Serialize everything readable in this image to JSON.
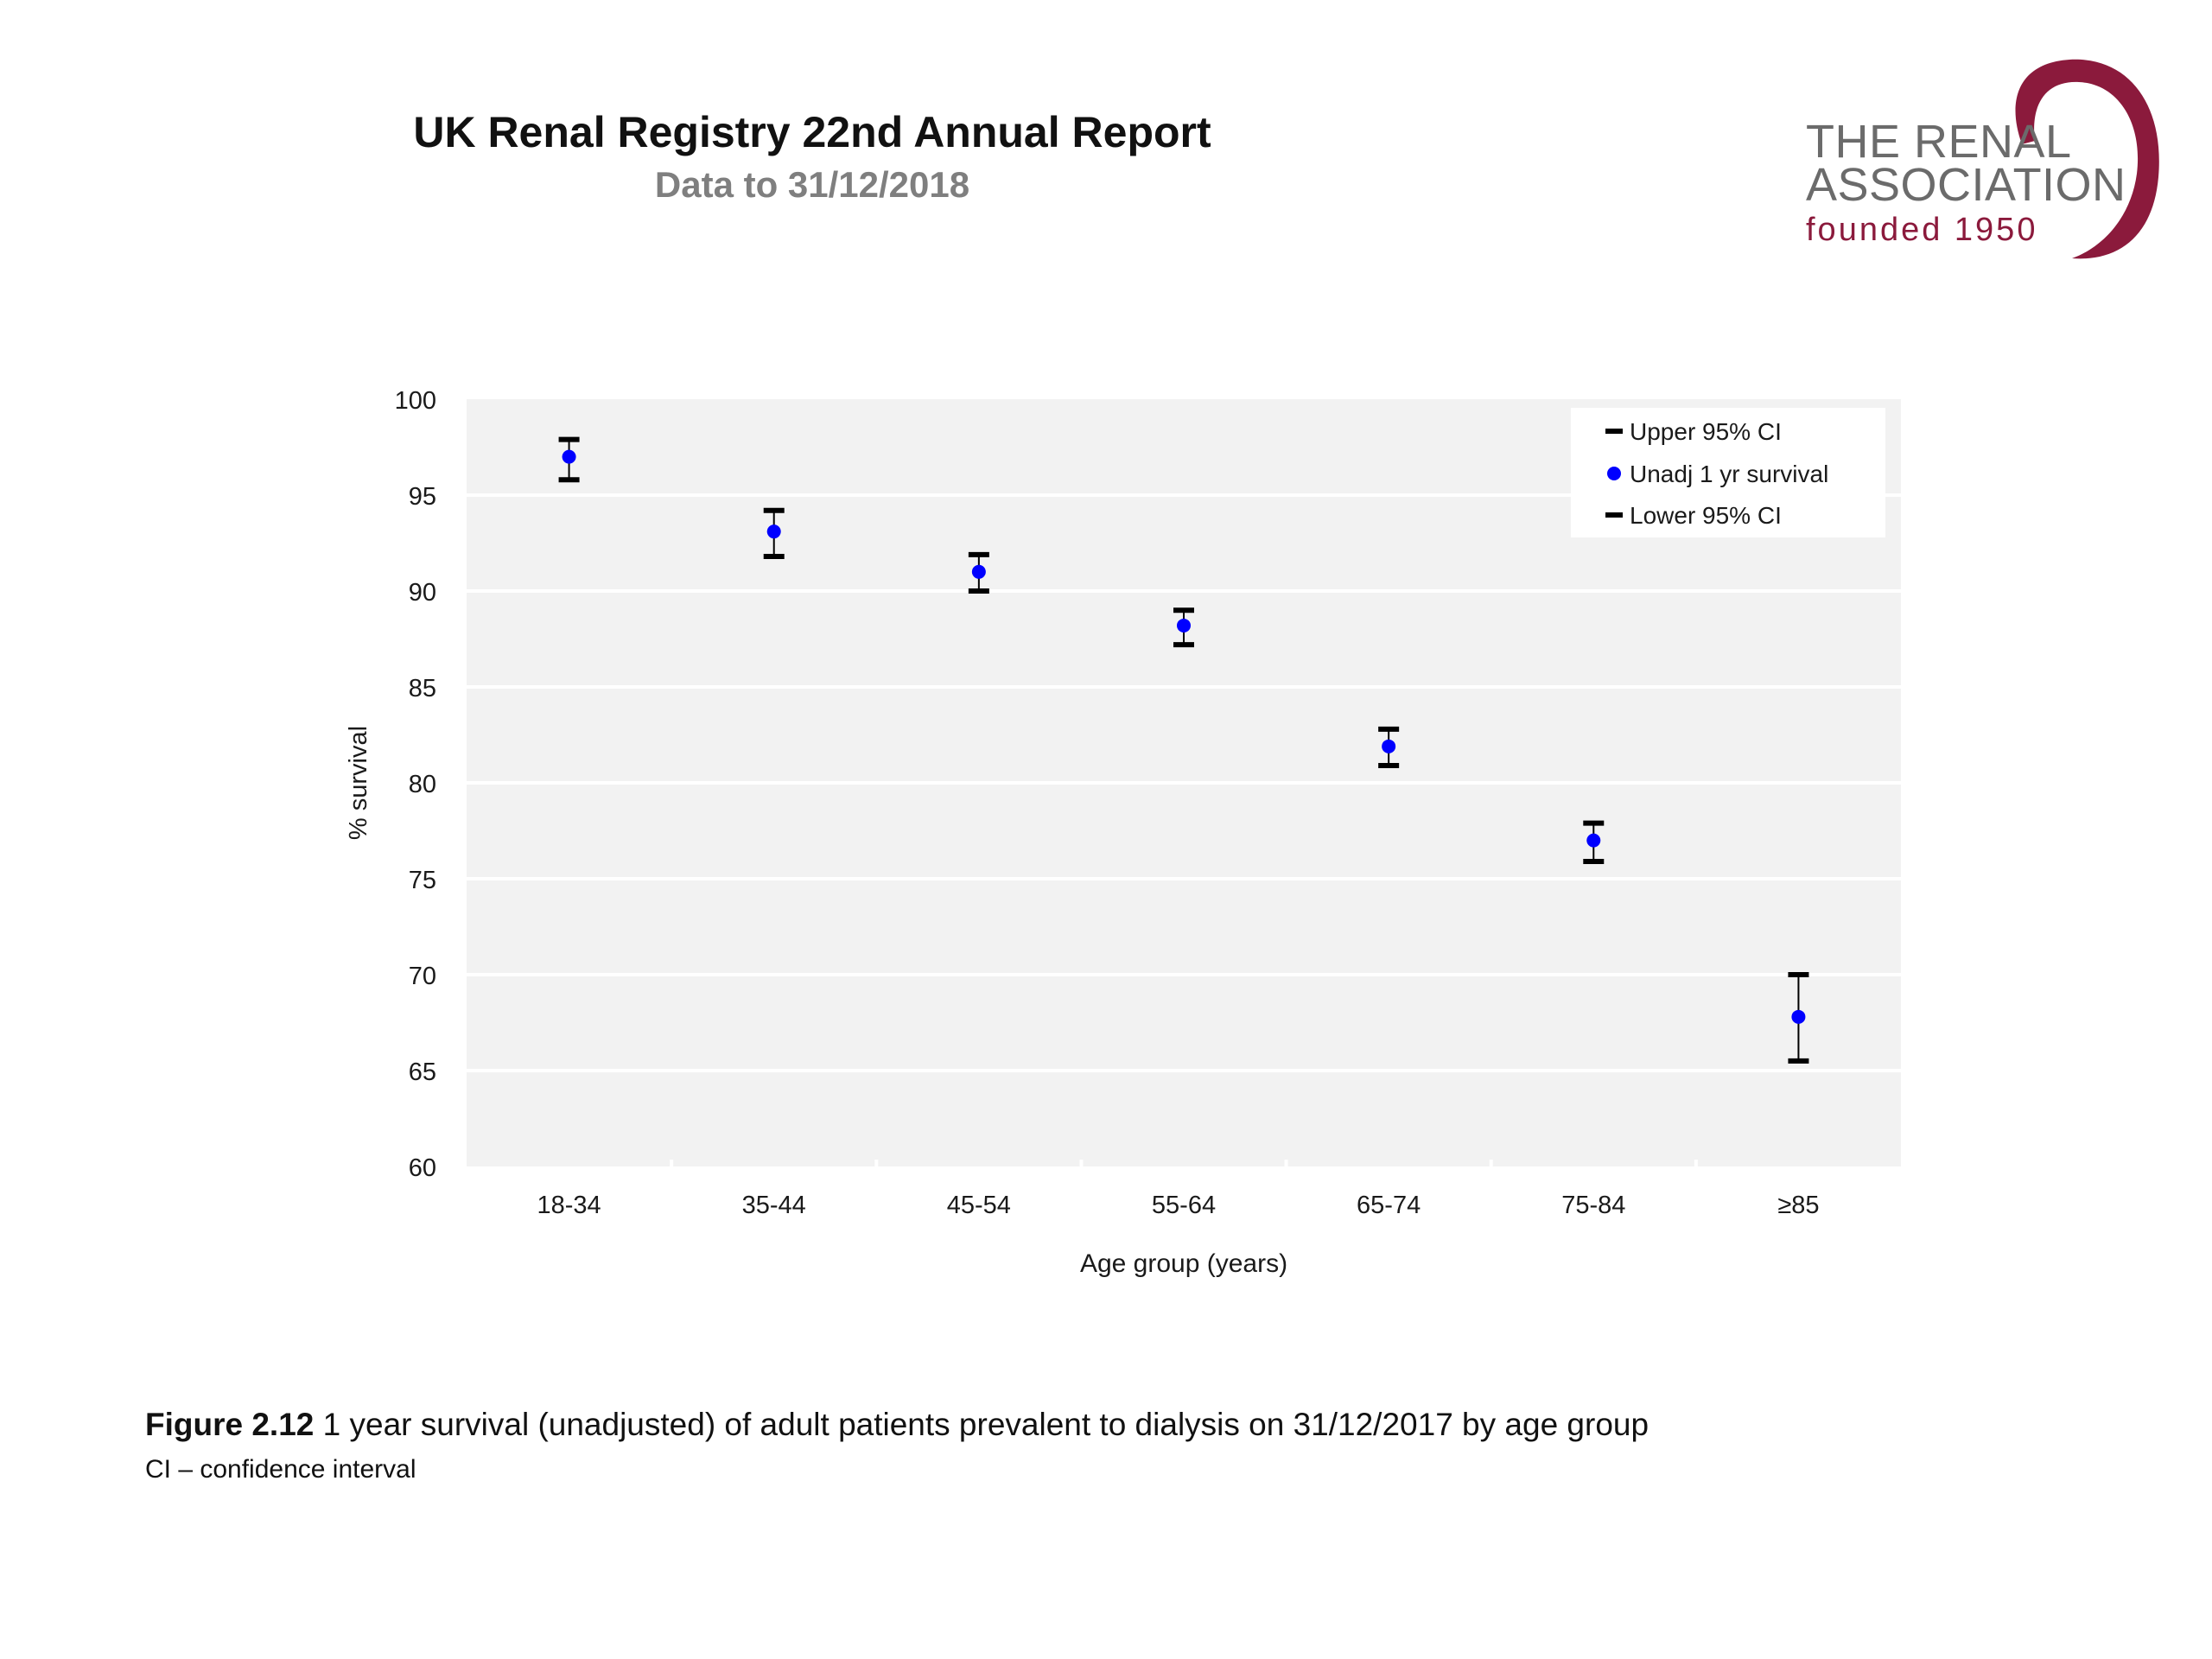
{
  "header": {
    "title": "UK Renal Registry 22nd Annual Report",
    "subtitle": "Data to 31/12/2018"
  },
  "logo": {
    "line1": "THE RENAL",
    "line2": "ASSOCIATION",
    "line3": "founded 1950"
  },
  "colors": {
    "plot_background": "#f2f2f2",
    "gridline": "#ffffff",
    "point": "#0000ff",
    "errorbar": "#000000",
    "logo_swoosh": "#8b1a3c"
  },
  "chart_data": {
    "type": "scatter",
    "title": "",
    "xlabel": "Age group (years)",
    "ylabel": "% survival",
    "ylim": [
      60,
      100
    ],
    "yticks": [
      "60",
      "65",
      "70",
      "75",
      "80",
      "85",
      "90",
      "95",
      "100"
    ],
    "grid": true,
    "legend_position": "top-right",
    "categories": [
      "18-34",
      "35-44",
      "45-54",
      "55-64",
      "65-74",
      "75-84",
      "≥85"
    ],
    "series": [
      {
        "name": "Upper 95% CI",
        "values": [
          97.9,
          94.2,
          91.9,
          89.0,
          82.8,
          77.9,
          70.0
        ]
      },
      {
        "name": "Unadj 1 yr survival",
        "values": [
          97.0,
          93.1,
          91.0,
          88.2,
          81.9,
          77.0,
          67.8
        ]
      },
      {
        "name": "Lower 95% CI",
        "values": [
          95.8,
          91.8,
          90.0,
          87.2,
          80.9,
          75.9,
          65.5
        ]
      }
    ]
  },
  "caption": {
    "figure_label": "Figure 2.12",
    "text": " 1 year survival (unadjusted) of adult patients prevalent to dialysis on 31/12/2017 by age group",
    "note": "CI – confidence interval"
  }
}
